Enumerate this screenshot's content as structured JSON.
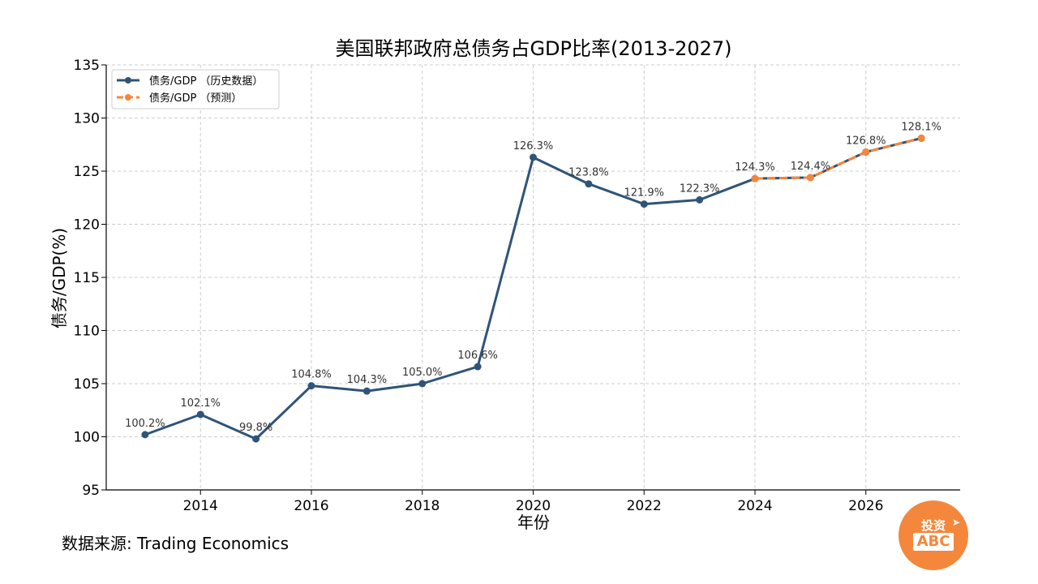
{
  "colors": {
    "history": "#2f5478",
    "forecast": "#f4873c",
    "grid": "#cccccc",
    "logo_bg": "#f4873c"
  },
  "source_text": "数据来源: Trading Economics",
  "logo": {
    "top_text": "投资",
    "bottom_text": "ABC",
    "icon": "arrow-icon"
  },
  "chart_data": {
    "type": "line",
    "title": "美国联邦政府总债务占GDP比率(2013-2027)",
    "xlabel": "年份",
    "ylabel": "债务/GDP(%)",
    "xlim": [
      2012.3,
      2027.7
    ],
    "ylim": [
      95,
      135
    ],
    "x_ticks": [
      2014,
      2016,
      2018,
      2020,
      2022,
      2024,
      2026
    ],
    "y_ticks": [
      95,
      100,
      105,
      110,
      115,
      120,
      125,
      130,
      135
    ],
    "grid": true,
    "legend_position": "top-left",
    "series": [
      {
        "name": "债务/GDP （历史数据）",
        "style": "solid",
        "x": [
          2013,
          2014,
          2015,
          2016,
          2017,
          2018,
          2019,
          2020,
          2021,
          2022,
          2023,
          2024,
          2025,
          2026,
          2027
        ],
        "values": [
          100.2,
          102.1,
          99.8,
          104.8,
          104.3,
          105.0,
          106.6,
          126.3,
          123.8,
          121.9,
          122.3,
          124.3,
          124.4,
          126.8,
          128.1
        ]
      },
      {
        "name": "债务/GDP （预测）",
        "style": "dashed",
        "x": [
          2024,
          2025,
          2026,
          2027
        ],
        "values": [
          124.3,
          124.4,
          126.8,
          128.1
        ]
      }
    ],
    "data_labels": [
      "100.2%",
      "102.1%",
      "99.8%",
      "104.8%",
      "104.3%",
      "105.0%",
      "106.6%",
      "126.3%",
      "123.8%",
      "121.9%",
      "122.3%",
      "124.3%",
      "124.4%",
      "126.8%",
      "128.1%"
    ]
  }
}
